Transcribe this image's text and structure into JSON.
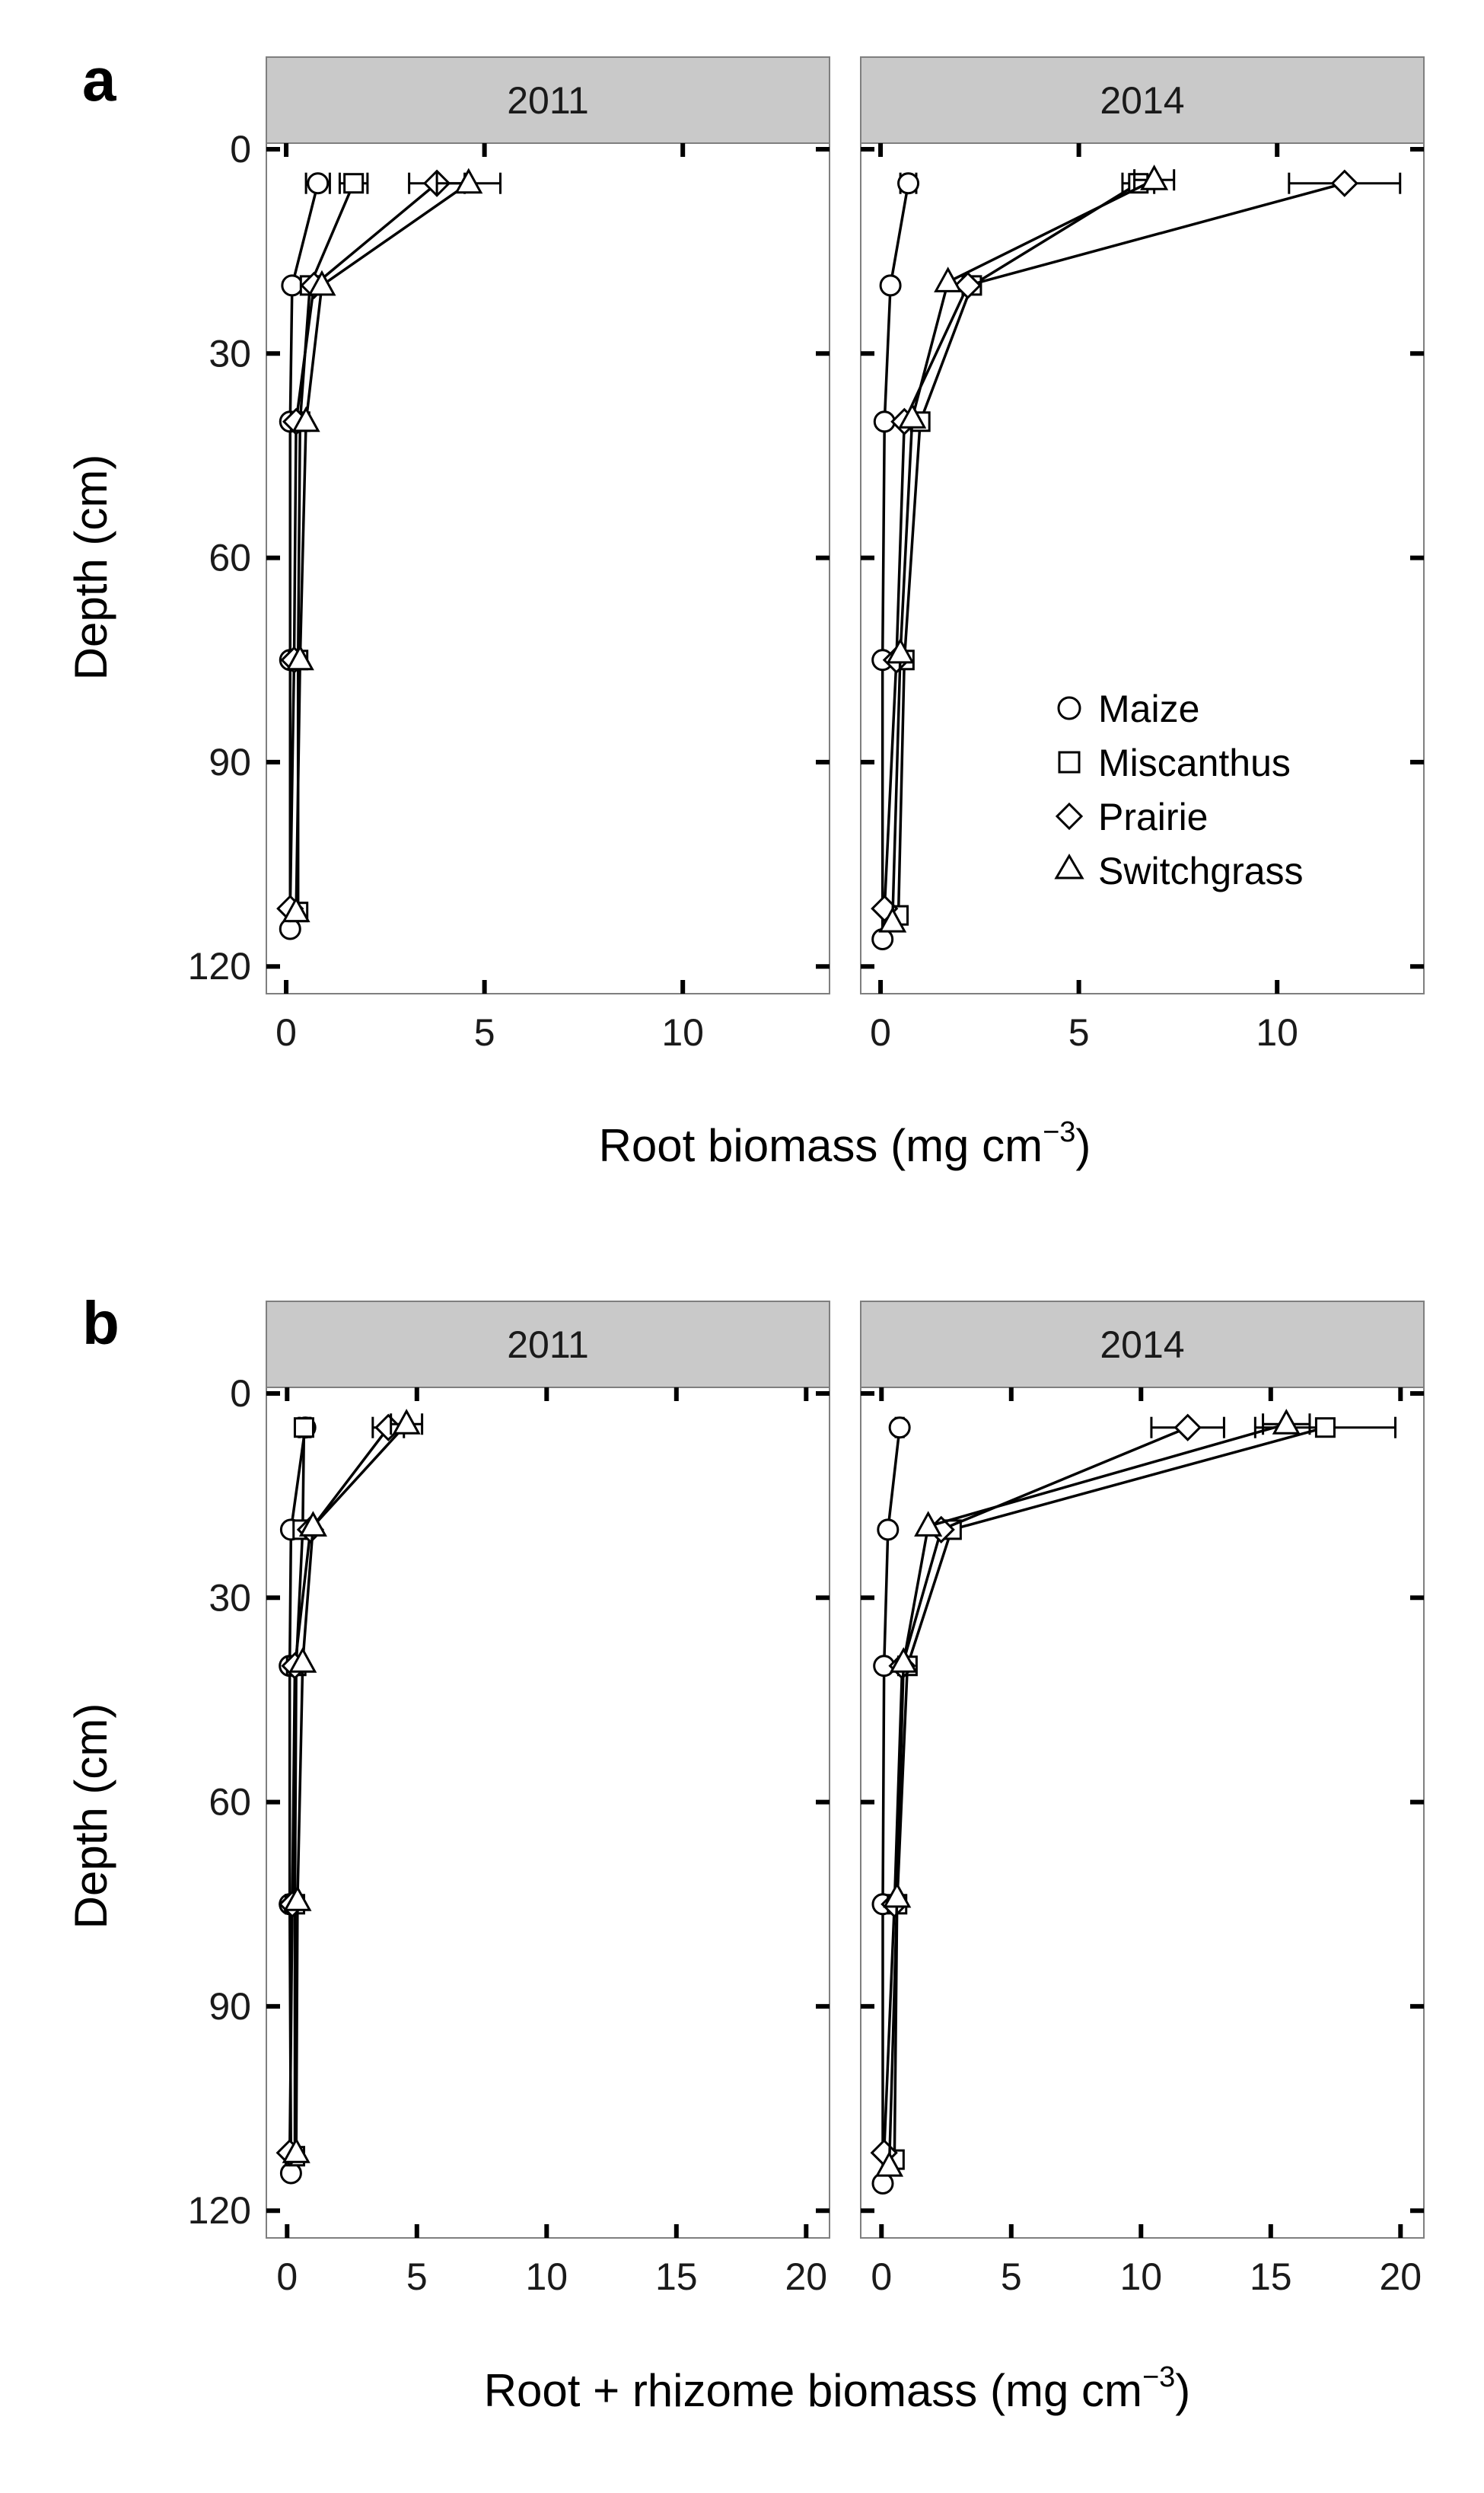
{
  "colors": {
    "strip": "#c9c9c9",
    "frame": "#7f7f7f",
    "ink": "#000000"
  },
  "legend": {
    "position": "bottom-right of 2014 panel in figure a",
    "entries": [
      {
        "name": "Maize",
        "marker": "circle"
      },
      {
        "name": "Miscanthus",
        "marker": "square"
      },
      {
        "name": "Prairie",
        "marker": "diamond"
      },
      {
        "name": "Switchgrass",
        "marker": "triangle"
      }
    ]
  },
  "chart_data": [
    {
      "type": "line",
      "panel_letter": "a",
      "xlabel": "Root biomass (mg cm",
      "xlabel_sup": "−3",
      "xlabel_end": ")",
      "ylabel": "Depth (cm)",
      "xlim": [
        -0.5,
        13.7
      ],
      "ylim": [
        0,
        124
      ],
      "y_reversed": true,
      "xticks": [
        0,
        5,
        10
      ],
      "yticks": [
        0,
        30,
        60,
        90,
        120
      ],
      "grid": false,
      "facets": [
        {
          "title": "2011",
          "series": [
            {
              "name": "Maize",
              "marker": "circle",
              "points": [
                {
                  "x": 0.8,
                  "y": 5,
                  "err": 0.3
                },
                {
                  "x": 0.15,
                  "y": 20
                },
                {
                  "x": 0.1,
                  "y": 40
                },
                {
                  "x": 0.1,
                  "y": 75
                },
                {
                  "x": 0.1,
                  "y": 114.5
                }
              ]
            },
            {
              "name": "Miscanthus",
              "marker": "square",
              "points": [
                {
                  "x": 1.7,
                  "y": 5,
                  "err": 0.35
                },
                {
                  "x": 0.6,
                  "y": 20
                },
                {
                  "x": 0.35,
                  "y": 40
                },
                {
                  "x": 0.3,
                  "y": 75
                },
                {
                  "x": 0.3,
                  "y": 112
                }
              ]
            },
            {
              "name": "Prairie",
              "marker": "diamond",
              "points": [
                {
                  "x": 3.8,
                  "y": 5,
                  "err": 0.7
                },
                {
                  "x": 0.7,
                  "y": 20
                },
                {
                  "x": 0.25,
                  "y": 40
                },
                {
                  "x": 0.2,
                  "y": 75
                },
                {
                  "x": 0.1,
                  "y": 111.5
                }
              ]
            },
            {
              "name": "Switchgrass",
              "marker": "triangle",
              "points": [
                {
                  "x": 4.6,
                  "y": 5,
                  "err": 0.8
                },
                {
                  "x": 0.9,
                  "y": 20
                },
                {
                  "x": 0.5,
                  "y": 40
                },
                {
                  "x": 0.35,
                  "y": 75
                },
                {
                  "x": 0.25,
                  "y": 112
                }
              ]
            }
          ]
        },
        {
          "title": "2014",
          "series": [
            {
              "name": "Maize",
              "marker": "circle",
              "points": [
                {
                  "x": 0.7,
                  "y": 5,
                  "err": 0.2
                },
                {
                  "x": 0.25,
                  "y": 20
                },
                {
                  "x": 0.1,
                  "y": 40
                },
                {
                  "x": 0.05,
                  "y": 75
                },
                {
                  "x": 0.05,
                  "y": 116
                }
              ]
            },
            {
              "name": "Miscanthus",
              "marker": "square",
              "points": [
                {
                  "x": 6.5,
                  "y": 5,
                  "err": 0.4
                },
                {
                  "x": 2.3,
                  "y": 20
                },
                {
                  "x": 1.0,
                  "y": 40
                },
                {
                  "x": 0.6,
                  "y": 75
                },
                {
                  "x": 0.45,
                  "y": 112.5
                }
              ]
            },
            {
              "name": "Prairie",
              "marker": "diamond",
              "points": [
                {
                  "x": 11.7,
                  "y": 5,
                  "err": 1.4
                },
                {
                  "x": 2.2,
                  "y": 20
                },
                {
                  "x": 0.6,
                  "y": 40
                },
                {
                  "x": 0.4,
                  "y": 75
                },
                {
                  "x": 0.1,
                  "y": 111.5
                }
              ]
            },
            {
              "name": "Switchgrass",
              "marker": "triangle",
              "points": [
                {
                  "x": 6.9,
                  "y": 4.5,
                  "err": 0.5
                },
                {
                  "x": 1.7,
                  "y": 19.5
                },
                {
                  "x": 0.8,
                  "y": 39.5
                },
                {
                  "x": 0.5,
                  "y": 74
                },
                {
                  "x": 0.3,
                  "y": 113.5
                }
              ]
            }
          ]
        }
      ]
    },
    {
      "type": "line",
      "panel_letter": "b",
      "xlabel": "Root + rhizome biomass (mg cm",
      "xlabel_sup": "−3",
      "xlabel_end": ")",
      "ylabel": "Depth (cm)",
      "xlim": [
        -0.8,
        20.9
      ],
      "ylim": [
        0,
        124
      ],
      "y_reversed": true,
      "xticks": [
        0,
        5,
        10,
        15,
        20
      ],
      "yticks": [
        0,
        30,
        60,
        90,
        120
      ],
      "grid": false,
      "facets": [
        {
          "title": "2011",
          "series": [
            {
              "name": "Maize",
              "marker": "circle",
              "points": [
                {
                  "x": 0.7,
                  "y": 5,
                  "err": 0.2
                },
                {
                  "x": 0.15,
                  "y": 20
                },
                {
                  "x": 0.1,
                  "y": 40
                },
                {
                  "x": 0.1,
                  "y": 75
                },
                {
                  "x": 0.15,
                  "y": 114.5
                }
              ]
            },
            {
              "name": "Miscanthus",
              "marker": "square",
              "points": [
                {
                  "x": 0.65,
                  "y": 5,
                  "err": 0.2
                },
                {
                  "x": 0.6,
                  "y": 20
                },
                {
                  "x": 0.35,
                  "y": 40
                },
                {
                  "x": 0.3,
                  "y": 75
                },
                {
                  "x": 0.3,
                  "y": 112
                }
              ]
            },
            {
              "name": "Prairie",
              "marker": "diamond",
              "points": [
                {
                  "x": 3.9,
                  "y": 5,
                  "err": 0.6
                },
                {
                  "x": 0.9,
                  "y": 20
                },
                {
                  "x": 0.3,
                  "y": 40
                },
                {
                  "x": 0.2,
                  "y": 75
                },
                {
                  "x": 0.1,
                  "y": 111.5
                }
              ]
            },
            {
              "name": "Switchgrass",
              "marker": "triangle",
              "points": [
                {
                  "x": 4.6,
                  "y": 4.5,
                  "err": 0.6
                },
                {
                  "x": 1.0,
                  "y": 19.5
                },
                {
                  "x": 0.6,
                  "y": 39.5
                },
                {
                  "x": 0.4,
                  "y": 74.5
                },
                {
                  "x": 0.35,
                  "y": 111.5
                }
              ]
            }
          ]
        },
        {
          "title": "2014",
          "series": [
            {
              "name": "Maize",
              "marker": "circle",
              "points": [
                {
                  "x": 0.7,
                  "y": 5,
                  "err": 0.15
                },
                {
                  "x": 0.25,
                  "y": 20
                },
                {
                  "x": 0.1,
                  "y": 40
                },
                {
                  "x": 0.05,
                  "y": 75
                },
                {
                  "x": 0.05,
                  "y": 116
                }
              ]
            },
            {
              "name": "Miscanthus",
              "marker": "square",
              "points": [
                {
                  "x": 17.1,
                  "y": 5,
                  "err": 2.7
                },
                {
                  "x": 2.7,
                  "y": 20
                },
                {
                  "x": 1.0,
                  "y": 40
                },
                {
                  "x": 0.6,
                  "y": 75
                },
                {
                  "x": 0.5,
                  "y": 112.5
                }
              ]
            },
            {
              "name": "Prairie",
              "marker": "diamond",
              "points": [
                {
                  "x": 11.8,
                  "y": 5,
                  "err": 1.4
                },
                {
                  "x": 2.3,
                  "y": 20
                },
                {
                  "x": 0.8,
                  "y": 40
                },
                {
                  "x": 0.5,
                  "y": 75
                },
                {
                  "x": 0.1,
                  "y": 111.5
                }
              ]
            },
            {
              "name": "Switchgrass",
              "marker": "triangle",
              "points": [
                {
                  "x": 15.6,
                  "y": 4.5,
                  "err": 0.9
                },
                {
                  "x": 1.8,
                  "y": 19.5
                },
                {
                  "x": 0.85,
                  "y": 39.5
                },
                {
                  "x": 0.6,
                  "y": 74
                },
                {
                  "x": 0.3,
                  "y": 113.5
                }
              ]
            }
          ]
        }
      ]
    }
  ]
}
